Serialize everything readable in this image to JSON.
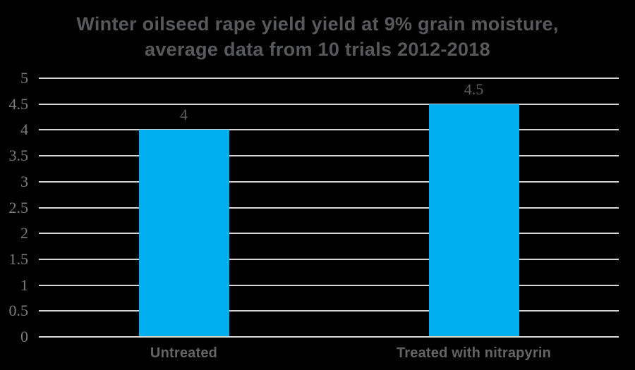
{
  "title": {
    "line1": "Winter oilseed rape yield yield at 9% grain moisture,",
    "line2": "average data from 10 trials 2012-2018"
  },
  "chart_data": {
    "type": "bar",
    "title": "Winter oilseed rape yield yield at 9% grain moisture, average data from 10 trials 2012-2018",
    "categories": [
      "Untreated",
      "Treated with nitrapyrin"
    ],
    "values": [
      4,
      4.5
    ],
    "value_labels": [
      "4",
      "4.5"
    ],
    "xlabel": "",
    "ylabel": "",
    "ylim": [
      0,
      5
    ],
    "yticks": [
      0,
      0.5,
      1,
      1.5,
      2,
      2.5,
      3,
      3.5,
      4,
      4.5,
      5
    ],
    "ytick_labels": [
      "0",
      "0.5",
      "1",
      "1.5",
      "2",
      "2.5",
      "3",
      "3.5",
      "4",
      "4.5",
      "5"
    ],
    "grid": "horizontal",
    "legend": "none",
    "colors": {
      "background": "#000000",
      "bar": "#00AEEF",
      "gridline": "#D8D8D8",
      "tick_label": "#7B7B7B",
      "value_label": "#5E5E5E",
      "category_label": "#646464",
      "title": "#58595B"
    }
  }
}
